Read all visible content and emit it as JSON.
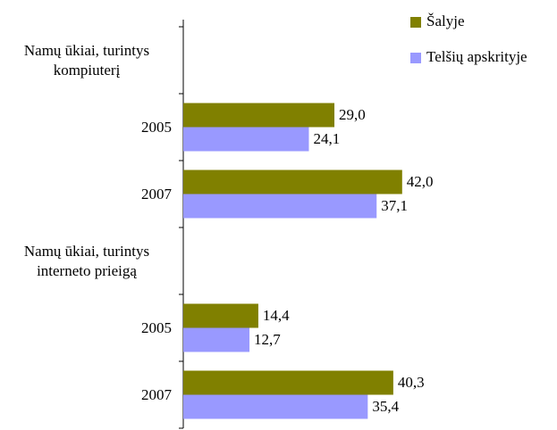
{
  "chart_data": {
    "type": "bar",
    "orientation": "horizontal",
    "categories": [
      "Namų ūkiai, turintys kompiuterį",
      "2005",
      "2007",
      "Namų ūkiai, turintys interneto prieigą",
      "2005",
      "2007"
    ],
    "series": [
      {
        "name": "Šalyje",
        "color": "#808000",
        "values": [
          null,
          29.0,
          42.0,
          null,
          14.4,
          40.3
        ],
        "value_labels": [
          null,
          "29,0",
          "42,0",
          null,
          "14,4",
          "40,3"
        ]
      },
      {
        "name": "Telšių apskrityje",
        "color": "#9999ff",
        "values": [
          null,
          24.1,
          37.1,
          null,
          12.7,
          35.4
        ],
        "value_labels": [
          null,
          "24,1",
          "37,1",
          null,
          "12,7",
          "35,4"
        ]
      }
    ],
    "xlim": [
      0,
      70
    ],
    "legend": "top-right"
  }
}
